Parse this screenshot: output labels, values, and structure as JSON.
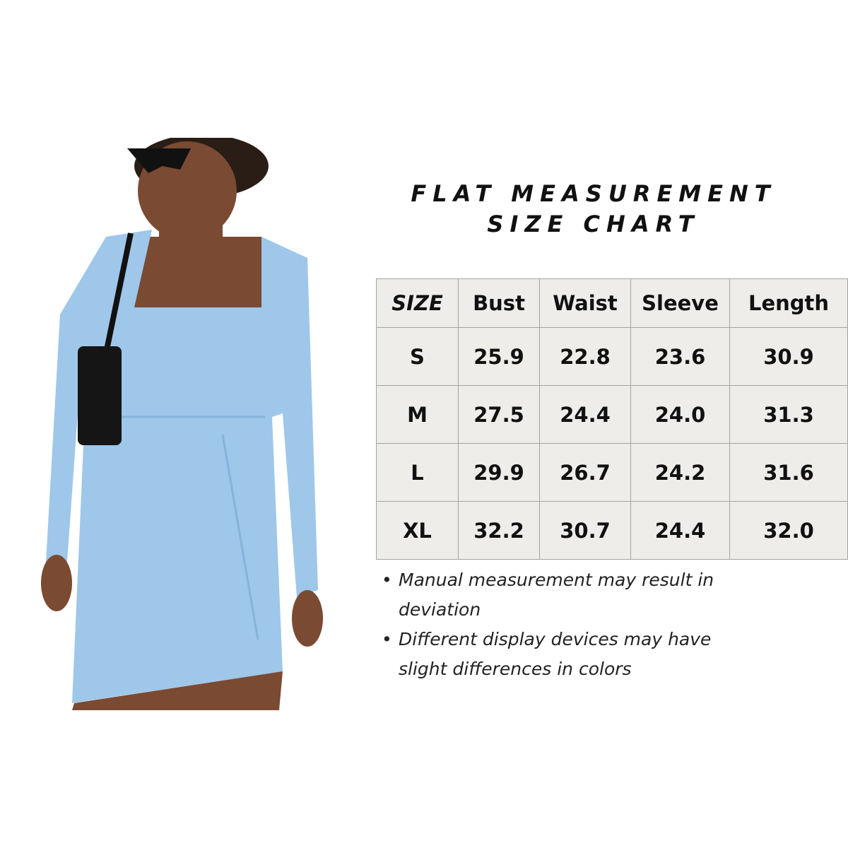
{
  "title": {
    "line1": "FLAT MEASUREMENT",
    "line2": "SIZE CHART"
  },
  "colors": {
    "dress": "#9ec7ea",
    "table_bg": "#eeede9",
    "border": "#a3a3a3",
    "text": "#111111"
  },
  "table": {
    "headers": [
      "SIZE",
      "Bust",
      "Waist",
      "Sleeve",
      "Length"
    ],
    "rows": [
      [
        "S",
        "25.9",
        "22.8",
        "23.6",
        "30.9"
      ],
      [
        "M",
        "27.5",
        "24.4",
        "24.0",
        "31.3"
      ],
      [
        "L",
        "29.9",
        "26.7",
        "24.2",
        "31.6"
      ],
      [
        "XL",
        "32.2",
        "30.7",
        "24.4",
        "32.0"
      ]
    ]
  },
  "notes": [
    "Manual measurement may result in deviation",
    "Different display devices may have slight differences in colors"
  ]
}
